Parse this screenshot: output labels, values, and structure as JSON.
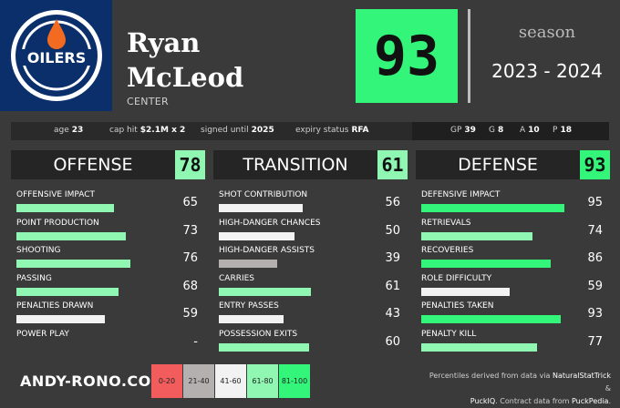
{
  "player": {
    "first": "Ryan",
    "last": "McLeod",
    "position": "CENTER"
  },
  "overall": "93",
  "season": {
    "label": "season",
    "value": "2023 - 2024"
  },
  "info": {
    "age_label": "age",
    "age": "23",
    "cap_label": "cap hit",
    "cap": "$2.1M x 2",
    "signed_label": "signed until",
    "signed": "2025",
    "expiry_label": "expiry status",
    "expiry": "RFA",
    "gp_label": "GP",
    "gp": "39",
    "g_label": "G",
    "g": "8",
    "a_label": "A",
    "a": "10",
    "p_label": "P",
    "p": "18"
  },
  "panels": {
    "offense": {
      "title": "OFFENSE",
      "score": "78",
      "rows": [
        {
          "label": "OFFENSIVE IMPACT",
          "value": "65",
          "pct": 65,
          "color": "#8ff7b2"
        },
        {
          "label": "POINT PRODUCTION",
          "value": "73",
          "pct": 73,
          "color": "#8ff7b2"
        },
        {
          "label": "SHOOTING",
          "value": "76",
          "pct": 76,
          "color": "#8ff7b2"
        },
        {
          "label": "PASSING",
          "value": "68",
          "pct": 68,
          "color": "#8ff7b2"
        },
        {
          "label": "PENALTIES DRAWN",
          "value": "59",
          "pct": 59,
          "color": "#f2f2f2"
        },
        {
          "label": "POWER PLAY",
          "value": "-",
          "pct": 0,
          "color": "#f2f2f2"
        }
      ]
    },
    "transition": {
      "title": "TRANSITION",
      "score": "61",
      "rows": [
        {
          "label": "SHOT CONTRIBUTION",
          "value": "56",
          "pct": 56,
          "color": "#f2f2f2"
        },
        {
          "label": "HIGH-DANGER CHANCES",
          "value": "50",
          "pct": 50,
          "color": "#f2f2f2"
        },
        {
          "label": "HIGH-DANGER ASSISTS",
          "value": "39",
          "pct": 39,
          "color": "#b5b0b0"
        },
        {
          "label": "CARRIES",
          "value": "61",
          "pct": 61,
          "color": "#8ff7b2"
        },
        {
          "label": "ENTRY PASSES",
          "value": "43",
          "pct": 43,
          "color": "#f2f2f2"
        },
        {
          "label": "POSSESSION EXITS",
          "value": "60",
          "pct": 60,
          "color": "#8ff7b2"
        }
      ]
    },
    "defense": {
      "title": "DEFENSE",
      "score": "93",
      "rows": [
        {
          "label": "DEFENSIVE IMPACT",
          "value": "95",
          "pct": 95,
          "color": "#33f57a"
        },
        {
          "label": "RETRIEVALS",
          "value": "74",
          "pct": 74,
          "color": "#8ff7b2"
        },
        {
          "label": "RECOVERIES",
          "value": "86",
          "pct": 86,
          "color": "#33f57a"
        },
        {
          "label": "ROLE DIFFICULTY",
          "value": "59",
          "pct": 59,
          "color": "#f2f2f2"
        },
        {
          "label": "PENALTIES TAKEN",
          "value": "93",
          "pct": 93,
          "color": "#33f57a"
        },
        {
          "label": "PENALTY KILL",
          "value": "77",
          "pct": 77,
          "color": "#8ff7b2"
        }
      ]
    }
  },
  "footer": {
    "brand": "ANDY-RONO.COM",
    "legend": [
      {
        "label": "0-20",
        "color": "#f25c5c"
      },
      {
        "label": "21-40",
        "color": "#b5b0b0"
      },
      {
        "label": "41-60",
        "color": "#f2f2f2"
      },
      {
        "label": "61-80",
        "color": "#8ff7b2"
      },
      {
        "label": "81-100",
        "color": "#33f57a"
      }
    ],
    "note_line1": "Percentiles derived from data via",
    "note_src1": "NaturalStatTrick",
    "note_amp": "&",
    "note_src2": "PuckIQ",
    "note_line2": ". Contract data from",
    "note_src3": "PuckPedia",
    "note_end": "."
  },
  "colors": {
    "accent_green": "#33f57a",
    "team_blue": "#0a2f6b",
    "team_orange": "#f26b21"
  }
}
